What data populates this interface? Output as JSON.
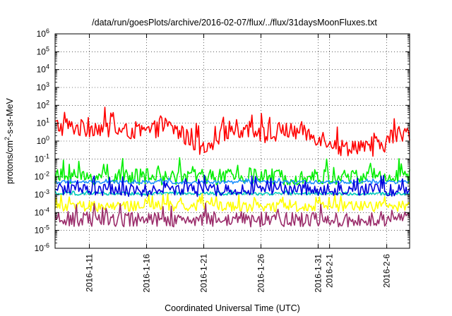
{
  "chart_data": {
    "type": "line",
    "title": "/data/run/goesPlots/archive/2016-02-07/flux/../flux/31daysMoonFluxes.txt",
    "xlabel": "Coordinated Universal Time (UTC)",
    "ylabel_base": "protons/cm",
    "ylabel_sup": "2",
    "ylabel_tail": "-s-sr-MeV",
    "yscale": "log",
    "ylim_exp": [
      -6,
      6
    ],
    "xlim": [
      "2016-01-08",
      "2016-02-08"
    ],
    "grid": true,
    "legend": "none",
    "y_ticks": [
      {
        "exp": -6,
        "base": "10",
        "sup": "-6"
      },
      {
        "exp": -5,
        "base": "10",
        "sup": "-5"
      },
      {
        "exp": -4,
        "base": "10",
        "sup": "-4"
      },
      {
        "exp": -3,
        "base": "10",
        "sup": "-3"
      },
      {
        "exp": -2,
        "base": "10",
        "sup": "-2"
      },
      {
        "exp": -1,
        "base": "10",
        "sup": "-1"
      },
      {
        "exp": 0,
        "base": "10",
        "sup": "0"
      },
      {
        "exp": 1,
        "base": "10",
        "sup": "1"
      },
      {
        "exp": 2,
        "base": "10",
        "sup": "2"
      },
      {
        "exp": 3,
        "base": "10",
        "sup": "3"
      },
      {
        "exp": 4,
        "base": "10",
        "sup": "4"
      },
      {
        "exp": 5,
        "base": "10",
        "sup": "5"
      },
      {
        "exp": 6,
        "base": "10",
        "sup": "6"
      }
    ],
    "x_ticks": [
      {
        "date": "2016-01-11",
        "label": "2016-1-11"
      },
      {
        "date": "2016-01-16",
        "label": "2016-1-16"
      },
      {
        "date": "2016-01-21",
        "label": "2016-1-21"
      },
      {
        "date": "2016-01-26",
        "label": "2016-1-26"
      },
      {
        "date": "2016-01-31",
        "label": "2016-1-31"
      },
      {
        "date": "2016-02-01",
        "label": "2016-2-1"
      },
      {
        "date": "2016-02-06",
        "label": "2016-2-6"
      }
    ],
    "series": [
      {
        "color": "#ff0000",
        "base_log10": [
          0.9,
          0.7,
          0.8,
          0.6,
          0.8,
          0.7,
          0.6,
          0.5,
          0.6,
          0.5,
          0.6,
          0.9,
          0.7,
          0.3,
          0.0,
          -0.5,
          -0.6,
          0.4,
          0.8,
          0.6,
          0.7,
          0.4,
          0.2,
          0.7,
          0.5,
          0.6,
          0.3,
          0.2,
          0.0,
          -0.4,
          -0.3,
          -0.2,
          -0.6,
          -0.4,
          0.2,
          0.4,
          0.5
        ],
        "noise": 0.5
      },
      {
        "color": "#00ee00",
        "base_log10": [
          -2.0,
          -2.0,
          -2.0,
          -2.05,
          -2.0,
          -2.0,
          -2.0,
          -2.0,
          -2.0,
          -2.0,
          -2.0,
          -2.05,
          -2.0,
          -2.0,
          -2.0,
          -2.0,
          -2.0,
          -2.0,
          -2.0,
          -2.05,
          -2.0,
          -2.0,
          -2.0,
          -2.0,
          -2.0,
          -2.0,
          -2.0,
          -2.0,
          -2.05,
          -2.0,
          -2.0,
          -2.0,
          -2.0,
          -2.0,
          -2.0,
          -2.0,
          -2.0
        ],
        "noise": 0.45
      },
      {
        "color": "#1e90ff",
        "base_log10": [
          -2.3,
          -2.3,
          -2.3,
          -2.3,
          -2.3,
          -2.3,
          -2.3,
          -2.3,
          -2.3,
          -2.3,
          -2.3,
          -2.3,
          -2.3,
          -2.3,
          -2.3,
          -2.3,
          -2.3,
          -2.3,
          -2.3,
          -2.3,
          -2.3,
          -2.3,
          -2.3,
          -2.3,
          -2.3,
          -2.3,
          -2.3,
          -2.3,
          -2.3,
          -2.3,
          -2.3,
          -2.3,
          -2.3,
          -2.3,
          -2.3,
          -2.3,
          -2.3
        ],
        "noise": 0.1
      },
      {
        "color": "#00ccbb",
        "base_log10": [
          -2.95,
          -2.95,
          -2.95,
          -2.95,
          -2.95,
          -2.95,
          -2.95,
          -2.95,
          -2.95,
          -2.95,
          -2.95,
          -2.95,
          -2.95,
          -2.95,
          -2.95,
          -2.95,
          -2.95,
          -2.95,
          -2.95,
          -2.95,
          -2.95,
          -2.95,
          -2.95,
          -2.95,
          -2.95,
          -2.95,
          -2.95,
          -2.95,
          -2.95,
          -2.95,
          -2.95,
          -2.95,
          -2.95,
          -2.95,
          -2.95,
          -2.95,
          -2.95
        ],
        "noise": 0.08
      },
      {
        "color": "#ffff00",
        "base_log10": [
          -3.65,
          -3.65,
          -3.65,
          -3.65,
          -3.65,
          -3.65,
          -3.65,
          -3.65,
          -3.65,
          -3.65,
          -3.65,
          -3.65,
          -3.65,
          -3.65,
          -3.65,
          -3.65,
          -3.65,
          -3.65,
          -3.65,
          -3.65,
          -3.65,
          -3.65,
          -3.65,
          -3.65,
          -3.65,
          -3.65,
          -3.65,
          -3.65,
          -3.65,
          -3.65,
          -3.65,
          -3.65,
          -3.65,
          -3.65,
          -3.65,
          -3.65,
          -3.65
        ],
        "noise": 0.3
      },
      {
        "color": "#0000dd",
        "base_log10": [
          -2.75,
          -2.75,
          -2.75,
          -2.75,
          -2.75,
          -2.75,
          -2.75,
          -2.75,
          -2.75,
          -2.75,
          -2.75,
          -2.75,
          -2.75,
          -2.75,
          -2.75,
          -2.75,
          -2.75,
          -2.75,
          -2.75,
          -2.75,
          -2.75,
          -2.75,
          -2.75,
          -2.75,
          -2.75,
          -2.75,
          -2.75,
          -2.75,
          -2.75,
          -2.75,
          -2.75,
          -2.75,
          -2.75,
          -2.75,
          -2.75,
          -2.75,
          -2.75
        ],
        "noise": 0.35
      },
      {
        "color": "#9b2d6b",
        "base_log10": [
          -4.4,
          -4.4,
          -4.4,
          -4.4,
          -4.4,
          -4.4,
          -4.4,
          -4.4,
          -4.4,
          -4.4,
          -4.4,
          -4.4,
          -4.4,
          -4.4,
          -4.4,
          -4.4,
          -4.4,
          -4.4,
          -4.4,
          -4.4,
          -4.4,
          -4.4,
          -4.4,
          -4.4,
          -4.4,
          -4.4,
          -4.4,
          -4.4,
          -4.4,
          -4.4,
          -4.4,
          -4.4,
          -4.4,
          -4.4,
          -4.4,
          -4.4,
          -4.4
        ],
        "noise": 0.4
      }
    ]
  }
}
